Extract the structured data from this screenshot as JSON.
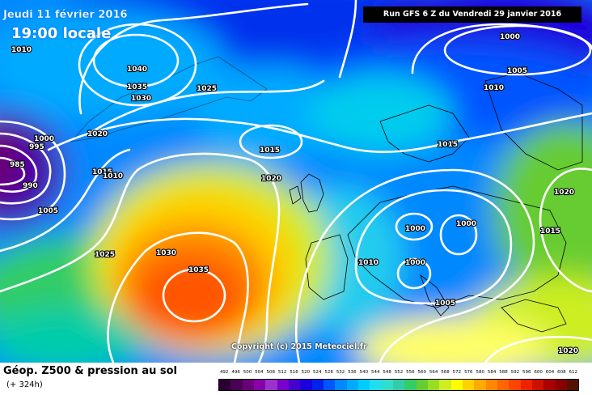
{
  "overlay": {
    "date": "Jeudi 11 février 2016",
    "time": "19:00 locale",
    "run": "Run GFS 6 Z du Vendredi 29 janvier 2016",
    "copyright": "Copyright (c) 2015 Meteociel.fr"
  },
  "footer": {
    "title": "Géop. Z500 & pression au sol",
    "subtitle": "(+ 324h)"
  },
  "legend": {
    "ticks": [
      "492",
      "496",
      "500",
      "504",
      "508",
      "512",
      "516",
      "520",
      "524",
      "528",
      "532",
      "536",
      "540",
      "544",
      "548",
      "552",
      "556",
      "560",
      "564",
      "568",
      "572",
      "576",
      "580",
      "584",
      "588",
      "592",
      "596",
      "600",
      "604",
      "608",
      "612"
    ],
    "colors": [
      "#2a0033",
      "#4a0055",
      "#6a0077",
      "#8800aa",
      "#9a33cc",
      "#7a00cc",
      "#4400cc",
      "#1a00dd",
      "#0022ee",
      "#0055ff",
      "#0088ff",
      "#00aaff",
      "#00ccff",
      "#22ddee",
      "#33ddcc",
      "#33ccaa",
      "#33cc66",
      "#66cc33",
      "#99dd22",
      "#ccee22",
      "#ffff00",
      "#ffd200",
      "#ffaa00",
      "#ff8800",
      "#ff6600",
      "#ff4400",
      "#ee2200",
      "#cc1100",
      "#aa0000",
      "#880000",
      "#551100"
    ]
  },
  "isobars": [
    {
      "text": "1010"
    },
    {
      "text": "1040"
    },
    {
      "text": "1035"
    },
    {
      "text": "1030"
    },
    {
      "text": "1025"
    },
    {
      "text": "1020"
    },
    {
      "text": "1000"
    },
    {
      "text": "995"
    },
    {
      "text": "985"
    },
    {
      "text": "990"
    },
    {
      "text": "1015"
    },
    {
      "text": "1010"
    },
    {
      "text": "1005"
    },
    {
      "text": "1025"
    },
    {
      "text": "1030"
    },
    {
      "text": "1035"
    },
    {
      "text": "1015"
    },
    {
      "text": "1020"
    },
    {
      "text": "1015"
    },
    {
      "text": "1000"
    },
    {
      "text": "1005"
    },
    {
      "text": "1010"
    },
    {
      "text": "1020"
    },
    {
      "text": "1015"
    },
    {
      "text": "1000"
    },
    {
      "text": "1000"
    },
    {
      "text": "1000"
    },
    {
      "text": "1010"
    },
    {
      "text": "1005"
    },
    {
      "text": "1020"
    }
  ]
}
